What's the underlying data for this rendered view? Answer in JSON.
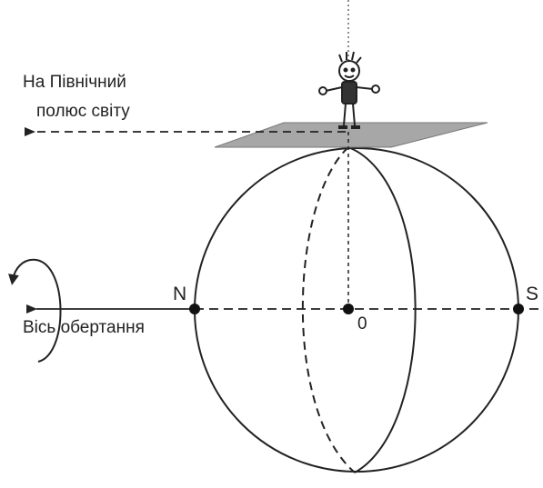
{
  "diagram": {
    "pole_label": [
      "На Північний",
      "полюс світу"
    ],
    "north": "N",
    "south": "S",
    "center": "0",
    "axis_label": "Вісь обертання"
  }
}
